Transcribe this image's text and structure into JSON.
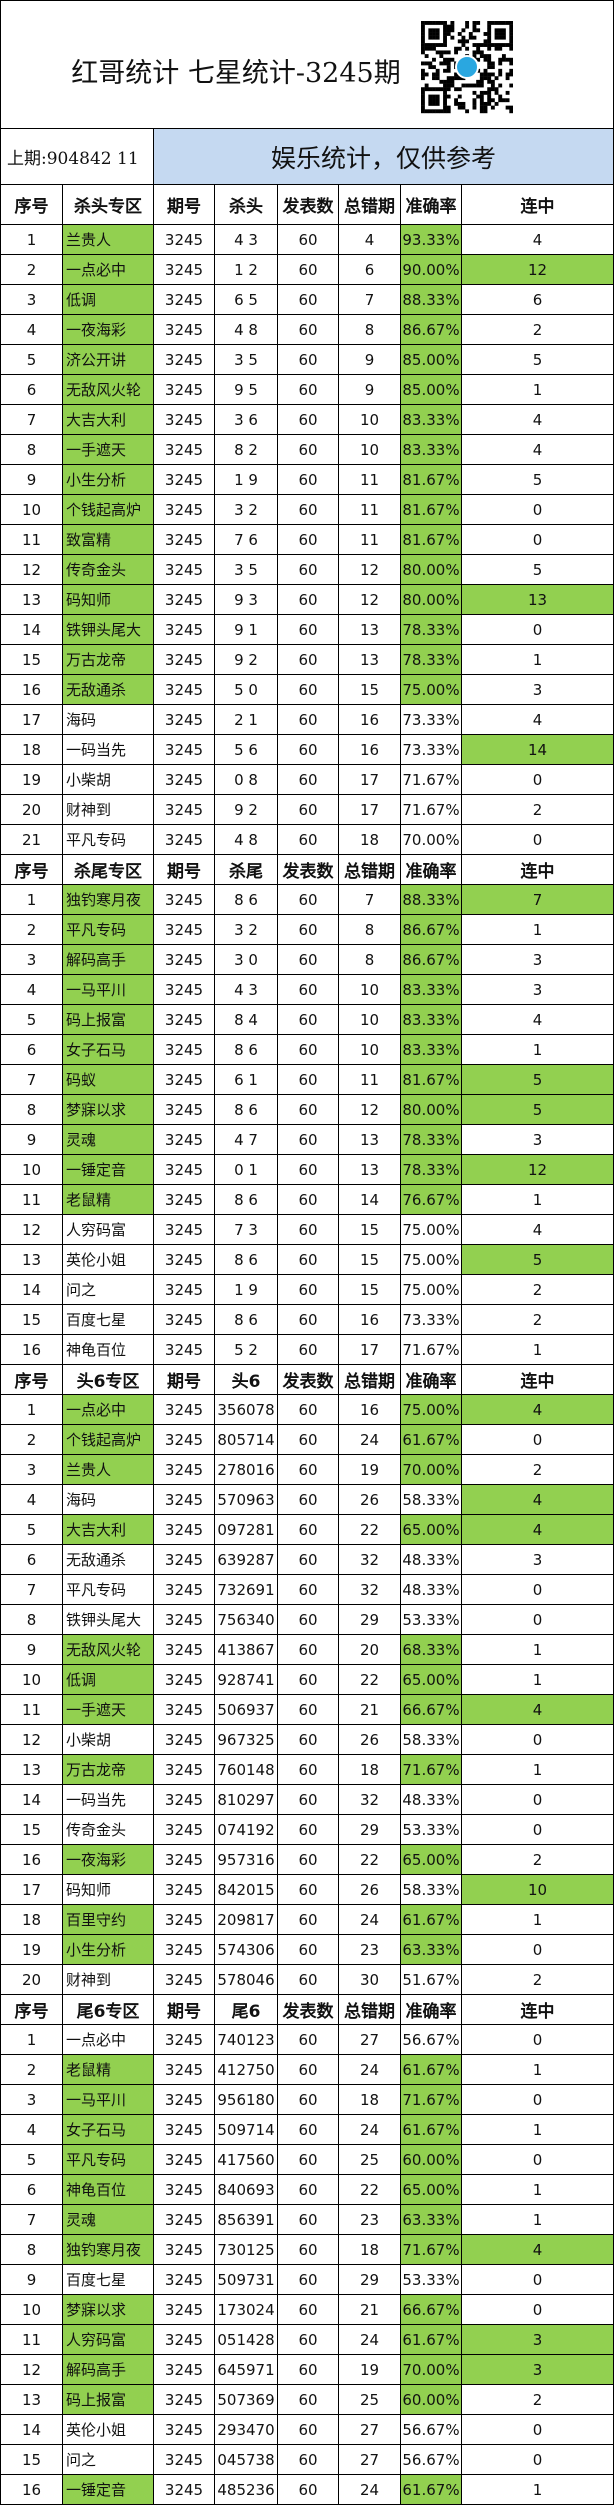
{
  "title": "红哥统计 七星统计-3245期",
  "last_draw": "上期:904842 11",
  "notice": "娱乐统计，仅供参考",
  "qr_badge": "微彩",
  "colors": {
    "highlight": "#92d050",
    "notice_bg": "#c5d9f1"
  },
  "row_format": [
    "序号",
    "专区名",
    "期号",
    "号码",
    "发表数",
    "总错期",
    "准确率",
    "连中",
    "高亮(N=名称,R=准确率,S=连中)"
  ],
  "sections": [
    {
      "headers": [
        "序号",
        "杀头专区",
        "期号",
        "杀头",
        "发表数",
        "总错期",
        "准确率",
        "连中"
      ],
      "rows": [
        [
          "1",
          "兰贵人",
          "3245",
          "4 3",
          "60",
          "4",
          "93.33%",
          "4",
          "NR"
        ],
        [
          "2",
          "一点必中",
          "3245",
          "1 2",
          "60",
          "6",
          "90.00%",
          "12",
          "NRS"
        ],
        [
          "3",
          "低调",
          "3245",
          "6 5",
          "60",
          "7",
          "88.33%",
          "6",
          "NR"
        ],
        [
          "4",
          "一夜海彩",
          "3245",
          "4 8",
          "60",
          "8",
          "86.67%",
          "2",
          "NR"
        ],
        [
          "5",
          "济公开讲",
          "3245",
          "3 5",
          "60",
          "9",
          "85.00%",
          "5",
          "NR"
        ],
        [
          "6",
          "无敌风火轮",
          "3245",
          "9 5",
          "60",
          "9",
          "85.00%",
          "1",
          "NR"
        ],
        [
          "7",
          "大吉大利",
          "3245",
          "3 6",
          "60",
          "10",
          "83.33%",
          "4",
          "NR"
        ],
        [
          "8",
          "一手遮天",
          "3245",
          "8 2",
          "60",
          "10",
          "83.33%",
          "4",
          "NR"
        ],
        [
          "9",
          "小生分析",
          "3245",
          "1 9",
          "60",
          "11",
          "81.67%",
          "5",
          "NR"
        ],
        [
          "10",
          "个钱起高炉",
          "3245",
          "3 2",
          "60",
          "11",
          "81.67%",
          "0",
          "NR"
        ],
        [
          "11",
          "致富精",
          "3245",
          "7 6",
          "60",
          "11",
          "81.67%",
          "0",
          "NR"
        ],
        [
          "12",
          "传奇金头",
          "3245",
          "3 5",
          "60",
          "12",
          "80.00%",
          "5",
          "NR"
        ],
        [
          "13",
          "码知师",
          "3245",
          "9 3",
          "60",
          "12",
          "80.00%",
          "13",
          "NRS"
        ],
        [
          "14",
          "铁钾头尾大",
          "3245",
          "9 1",
          "60",
          "13",
          "78.33%",
          "0",
          "NR"
        ],
        [
          "15",
          "万古龙帝",
          "3245",
          "9 2",
          "60",
          "13",
          "78.33%",
          "1",
          "NR"
        ],
        [
          "16",
          "无敌通杀",
          "3245",
          "5 0",
          "60",
          "15",
          "75.00%",
          "3",
          "NR"
        ],
        [
          "17",
          "海码",
          "3245",
          "2 1",
          "60",
          "16",
          "73.33%",
          "4",
          ""
        ],
        [
          "18",
          "一码当先",
          "3245",
          "5 6",
          "60",
          "16",
          "73.33%",
          "14",
          "S"
        ],
        [
          "19",
          "小柴胡",
          "3245",
          "0 8",
          "60",
          "17",
          "71.67%",
          "0",
          ""
        ],
        [
          "20",
          "财神到",
          "3245",
          "9 2",
          "60",
          "17",
          "71.67%",
          "2",
          ""
        ],
        [
          "21",
          "平凡专码",
          "3245",
          "4 8",
          "60",
          "18",
          "70.00%",
          "0",
          ""
        ]
      ]
    },
    {
      "headers": [
        "序号",
        "杀尾专区",
        "期号",
        "杀尾",
        "发表数",
        "总错期",
        "准确率",
        "连中"
      ],
      "rows": [
        [
          "1",
          "独钓寒月夜",
          "3245",
          "8 6",
          "60",
          "7",
          "88.33%",
          "7",
          "NRS"
        ],
        [
          "2",
          "平凡专码",
          "3245",
          "3 2",
          "60",
          "8",
          "86.67%",
          "1",
          "NR"
        ],
        [
          "3",
          "解码高手",
          "3245",
          "3 0",
          "60",
          "8",
          "86.67%",
          "3",
          "NR"
        ],
        [
          "4",
          "一马平川",
          "3245",
          "4 3",
          "60",
          "10",
          "83.33%",
          "3",
          "NR"
        ],
        [
          "5",
          "码上报富",
          "3245",
          "8 4",
          "60",
          "10",
          "83.33%",
          "4",
          "NR"
        ],
        [
          "6",
          "女子石马",
          "3245",
          "8 6",
          "60",
          "10",
          "83.33%",
          "1",
          "NR"
        ],
        [
          "7",
          "码蚁",
          "3245",
          "6 1",
          "60",
          "11",
          "81.67%",
          "5",
          "NRS"
        ],
        [
          "8",
          "梦寐以求",
          "3245",
          "8 6",
          "60",
          "12",
          "80.00%",
          "5",
          "NRS"
        ],
        [
          "9",
          "灵魂",
          "3245",
          "4 7",
          "60",
          "13",
          "78.33%",
          "3",
          "NR"
        ],
        [
          "10",
          "一锤定音",
          "3245",
          "0 1",
          "60",
          "13",
          "78.33%",
          "12",
          "NRS"
        ],
        [
          "11",
          "老鼠精",
          "3245",
          "8 6",
          "60",
          "14",
          "76.67%",
          "1",
          "NR"
        ],
        [
          "12",
          "人穷码富",
          "3245",
          "7 3",
          "60",
          "15",
          "75.00%",
          "4",
          ""
        ],
        [
          "13",
          "英伦小姐",
          "3245",
          "8 6",
          "60",
          "15",
          "75.00%",
          "5",
          "S"
        ],
        [
          "14",
          "问之",
          "3245",
          "1 9",
          "60",
          "15",
          "75.00%",
          "2",
          ""
        ],
        [
          "15",
          "百度七星",
          "3245",
          "8 6",
          "60",
          "16",
          "73.33%",
          "2",
          ""
        ],
        [
          "16",
          "神龟百位",
          "3245",
          "5 2",
          "60",
          "17",
          "71.67%",
          "1",
          ""
        ]
      ]
    },
    {
      "headers": [
        "序号",
        "头6专区",
        "期号",
        "头6",
        "发表数",
        "总错期",
        "准确率",
        "连中"
      ],
      "rows": [
        [
          "1",
          "一点必中",
          "3245",
          "356078",
          "60",
          "16",
          "75.00%",
          "4",
          "NRS"
        ],
        [
          "2",
          "个钱起高炉",
          "3245",
          "805714",
          "60",
          "24",
          "61.67%",
          "0",
          "NR"
        ],
        [
          "3",
          "兰贵人",
          "3245",
          "278016",
          "60",
          "19",
          "70.00%",
          "2",
          "NR"
        ],
        [
          "4",
          "海码",
          "3245",
          "570963",
          "60",
          "26",
          "58.33%",
          "4",
          "S"
        ],
        [
          "5",
          "大吉大利",
          "3245",
          "097281",
          "60",
          "22",
          "65.00%",
          "4",
          "NRS"
        ],
        [
          "6",
          "无敌通杀",
          "3245",
          "639287",
          "60",
          "32",
          "48.33%",
          "3",
          ""
        ],
        [
          "7",
          "平凡专码",
          "3245",
          "732691",
          "60",
          "32",
          "48.33%",
          "0",
          ""
        ],
        [
          "8",
          "铁钾头尾大",
          "3245",
          "756340",
          "60",
          "29",
          "53.33%",
          "0",
          ""
        ],
        [
          "9",
          "无敌风火轮",
          "3245",
          "413867",
          "60",
          "20",
          "68.33%",
          "1",
          "NR"
        ],
        [
          "10",
          "低调",
          "3245",
          "928741",
          "60",
          "22",
          "65.00%",
          "1",
          "NR"
        ],
        [
          "11",
          "一手遮天",
          "3245",
          "506937",
          "60",
          "21",
          "66.67%",
          "4",
          "NRS"
        ],
        [
          "12",
          "小柴胡",
          "3245",
          "967325",
          "60",
          "26",
          "58.33%",
          "0",
          ""
        ],
        [
          "13",
          "万古龙帝",
          "3245",
          "760148",
          "60",
          "18",
          "71.67%",
          "1",
          "NR"
        ],
        [
          "14",
          "一码当先",
          "3245",
          "810297",
          "60",
          "32",
          "48.33%",
          "0",
          ""
        ],
        [
          "15",
          "传奇金头",
          "3245",
          "074192",
          "60",
          "29",
          "53.33%",
          "0",
          ""
        ],
        [
          "16",
          "一夜海彩",
          "3245",
          "957316",
          "60",
          "22",
          "65.00%",
          "2",
          "NR"
        ],
        [
          "17",
          "码知师",
          "3245",
          "842015",
          "60",
          "26",
          "58.33%",
          "10",
          "S"
        ],
        [
          "18",
          "百里守约",
          "3245",
          "209817",
          "60",
          "24",
          "61.67%",
          "1",
          "NR"
        ],
        [
          "19",
          "小生分析",
          "3245",
          "574306",
          "60",
          "23",
          "63.33%",
          "0",
          "NR"
        ],
        [
          "20",
          "财神到",
          "3245",
          "578046",
          "60",
          "30",
          "51.67%",
          "2",
          ""
        ]
      ]
    },
    {
      "headers": [
        "序号",
        "尾6专区",
        "期号",
        "尾6",
        "发表数",
        "总错期",
        "准确率",
        "连中"
      ],
      "rows": [
        [
          "1",
          "一点必中",
          "3245",
          "740123",
          "60",
          "27",
          "56.67%",
          "0",
          ""
        ],
        [
          "2",
          "老鼠精",
          "3245",
          "412750",
          "60",
          "24",
          "61.67%",
          "1",
          "NR"
        ],
        [
          "3",
          "一马平川",
          "3245",
          "956180",
          "60",
          "18",
          "71.67%",
          "0",
          "NR"
        ],
        [
          "4",
          "女子石马",
          "3245",
          "509714",
          "60",
          "24",
          "61.67%",
          "1",
          "NR"
        ],
        [
          "5",
          "平凡专码",
          "3245",
          "417560",
          "60",
          "25",
          "60.00%",
          "0",
          "NR"
        ],
        [
          "6",
          "神龟百位",
          "3245",
          "840693",
          "60",
          "22",
          "65.00%",
          "1",
          "NR"
        ],
        [
          "7",
          "灵魂",
          "3245",
          "856391",
          "60",
          "23",
          "63.33%",
          "1",
          "NR"
        ],
        [
          "8",
          "独钓寒月夜",
          "3245",
          "730125",
          "60",
          "18",
          "71.67%",
          "4",
          "NRS"
        ],
        [
          "9",
          "百度七星",
          "3245",
          "509731",
          "60",
          "29",
          "53.33%",
          "0",
          ""
        ],
        [
          "10",
          "梦寐以求",
          "3245",
          "173024",
          "60",
          "21",
          "66.67%",
          "0",
          "NR"
        ],
        [
          "11",
          "人穷码富",
          "3245",
          "051428",
          "60",
          "24",
          "61.67%",
          "3",
          "NRS"
        ],
        [
          "12",
          "解码高手",
          "3245",
          "645971",
          "60",
          "19",
          "70.00%",
          "3",
          "NRS"
        ],
        [
          "13",
          "码上报富",
          "3245",
          "507369",
          "60",
          "25",
          "60.00%",
          "2",
          "NR"
        ],
        [
          "14",
          "英伦小姐",
          "3245",
          "293470",
          "60",
          "27",
          "56.67%",
          "0",
          ""
        ],
        [
          "15",
          "问之",
          "3245",
          "045738",
          "60",
          "27",
          "56.67%",
          "0",
          ""
        ],
        [
          "16",
          "一锤定音",
          "3245",
          "485236",
          "60",
          "24",
          "61.67%",
          "1",
          "NR"
        ]
      ]
    }
  ]
}
